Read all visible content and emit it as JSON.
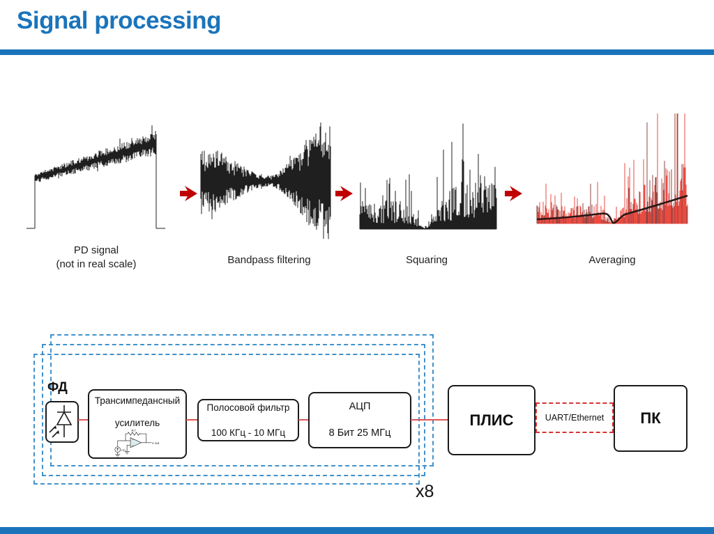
{
  "title": "Signal processing",
  "theme": {
    "accent_blue": "#1b74bb",
    "dashed_blue": "#4191cc",
    "arrow_red": "#c00000",
    "wire_red": "#dd5555",
    "uart_dash_red": "#d63333",
    "waveform_black": "#1f1f1f",
    "waveform_red": "#ea4b41",
    "waveform_dark_red": "#8d4644",
    "average_curve": "#2a1616"
  },
  "pipeline": {
    "stages": [
      {
        "figure": "pd-ramp",
        "label_lines": [
          "PD signal",
          "(not in real scale)"
        ]
      },
      {
        "figure": "bandpass",
        "label_lines": [
          "Bandpass filtering",
          ""
        ]
      },
      {
        "figure": "squared",
        "label_lines": [
          "Squaring",
          ""
        ]
      },
      {
        "figure": "averaged",
        "label_lines": [
          "Averaging",
          ""
        ]
      }
    ],
    "arrow_glyph": "➤"
  },
  "diagram": {
    "pd_label": "ФД",
    "tia": {
      "lines": [
        "Трансимпедансный",
        "усилитель"
      ],
      "circuit_labels": {
        "rf": "Rf",
        "iin": "Iin",
        "vout": "Vout"
      }
    },
    "filter": {
      "lines": [
        "Полосовой фильтр",
        "100 КГц - 10 МГц"
      ]
    },
    "adc": {
      "lines": [
        "АЦП",
        "8 Бит 25 МГц"
      ]
    },
    "fpga_label": "ПЛИС",
    "link_label": "UART/Ethernet",
    "pc_label": "ПК",
    "multiplier": "x8"
  }
}
